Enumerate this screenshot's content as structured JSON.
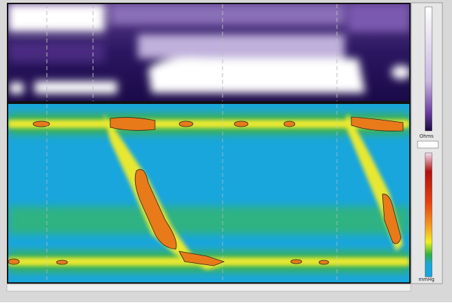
{
  "panels": {
    "impedance_unit": "Ohms",
    "pressure_unit": "mmHg"
  }
}
